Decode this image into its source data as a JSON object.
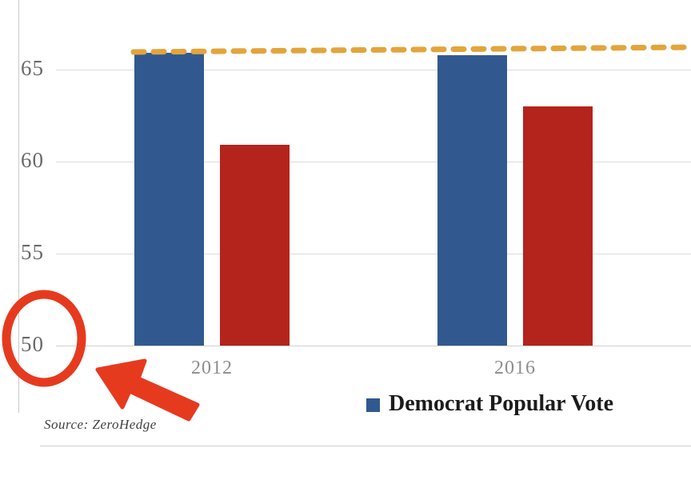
{
  "chart_data": {
    "type": "bar",
    "title": "",
    "categories": [
      "2012",
      "2016"
    ],
    "series": [
      {
        "label": "Democrat Popular Vote",
        "color": "#31598f",
        "values": [
          65.9,
          65.8
        ]
      },
      {
        "label": "",
        "color": "#b4231c",
        "values": [
          60.9,
          63.0
        ]
      }
    ],
    "yticks": [
      50,
      55,
      60,
      65
    ],
    "ylim": [
      50,
      67.5
    ],
    "grid": true,
    "legend_position": "bottom",
    "reference_line": {
      "value": 65.9,
      "style": "dashed",
      "color": "#e2a53c"
    }
  },
  "legend": {
    "items": [
      {
        "label": "Democrat Popular Vote",
        "color": "#31598f"
      }
    ]
  },
  "annotations": {
    "highlight_circle": {
      "around": "y-axis tick 50",
      "color": "#e63a1f"
    },
    "arrow": {
      "points_to": "circled y-axis tick 50",
      "color": "#e63a1f"
    }
  },
  "source_note": {
    "text": "Source: ZeroHedge"
  }
}
